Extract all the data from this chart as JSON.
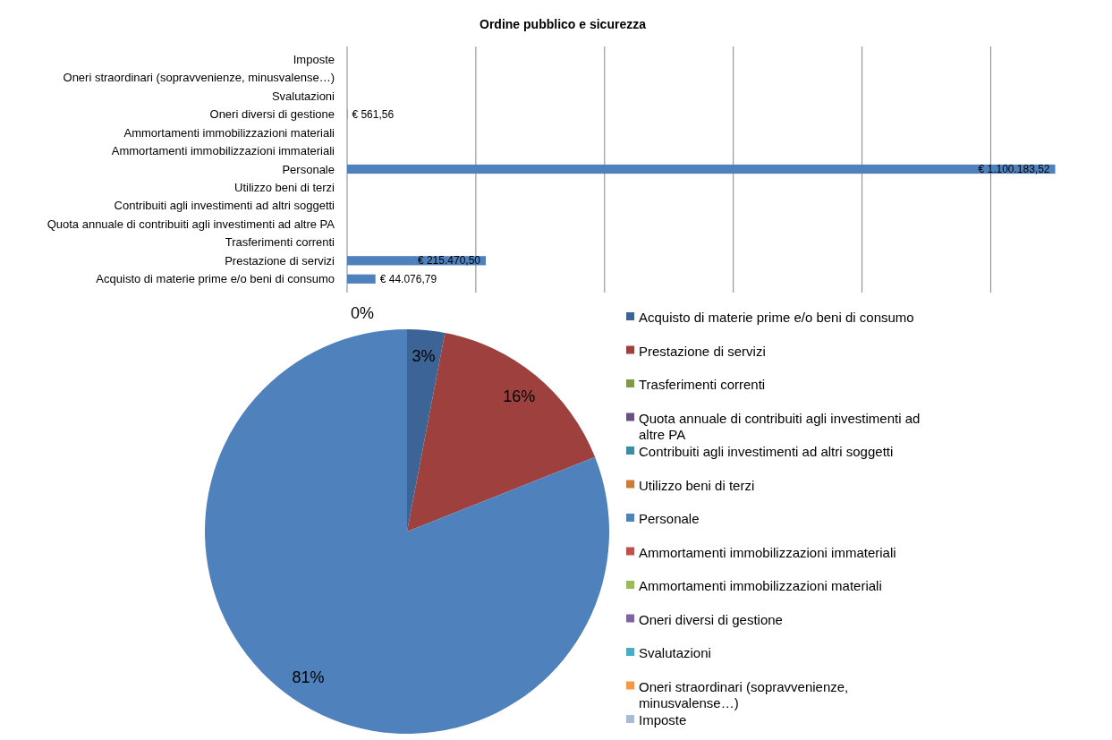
{
  "chart_data": [
    {
      "type": "bar",
      "orientation": "horizontal",
      "title": "Ordine pubblico e sicurezza",
      "categories": [
        "Imposte",
        "Oneri straordinari (sopravvenienze, minusvalense…)",
        "Svalutazioni",
        "Oneri diversi di gestione",
        "Ammortamenti immobilizzazioni materiali",
        "Ammortamenti immobilizzazioni immateriali",
        "Personale",
        "Utilizzo beni di terzi",
        "Contribuiti agli investimenti ad altri soggetti",
        "Quota annuale di contribuiti agli investimenti ad altre PA",
        "Trasferimenti correnti",
        "Prestazione di servizi",
        "Acquisto di materie prime e/o beni di consumo"
      ],
      "values": [
        0,
        0,
        0,
        561.56,
        0,
        0,
        1100183.52,
        0,
        0,
        0,
        0,
        215470.5,
        44076.79
      ],
      "value_labels": [
        null,
        null,
        null,
        "€ 561,56",
        null,
        null,
        "€ 1.100.183,52",
        null,
        null,
        null,
        null,
        "€ 215.470,50",
        "€ 44.076,79"
      ],
      "color": "#4f81bd",
      "xlim": [
        0,
        1105000
      ],
      "xticks": [
        {
          "value": 0,
          "label": null
        },
        {
          "value": 200000,
          "label": null
        },
        {
          "value": 400000,
          "label": null
        },
        {
          "value": 600000,
          "label": null
        },
        {
          "value": 800000,
          "label": null
        },
        {
          "value": 1000000,
          "label": null
        }
      ],
      "tick_labels": "y",
      "grid": "x"
    },
    {
      "type": "pie",
      "categories": [
        "Acquisto di materie prime e/o beni di consumo",
        "Prestazione di servizi",
        "Trasferimenti correnti",
        "Quota annuale di contribuiti agli investimenti ad altre PA",
        "Contribuiti agli investimenti ad altri soggetti",
        "Utilizzo beni di terzi",
        "Personale",
        "Ammortamenti immobilizzazioni immateriali",
        "Ammortamenti immobilizzazioni materiali",
        "Oneri diversi di gestione",
        "Svalutazioni",
        "Oneri straordinari (sopravvenienze, minusvalense…)",
        "Imposte"
      ],
      "values": [
        3,
        16,
        0,
        0,
        0,
        0,
        81,
        0,
        0,
        0,
        0,
        0,
        0
      ],
      "value_labels": [
        "3%",
        "16%",
        null,
        null,
        null,
        null,
        "81%",
        null,
        null,
        "0%",
        null,
        null,
        null
      ],
      "colors": [
        "#3c6496",
        "#9e413e",
        "#7f9a48",
        "#695185",
        "#3c8da3",
        "#cc7b38",
        "#4f81bd",
        "#c0504d",
        "#9bbb59",
        "#8064a2",
        "#4bacc6",
        "#f79646",
        "#aabad7"
      ],
      "legend": "right"
    }
  ]
}
